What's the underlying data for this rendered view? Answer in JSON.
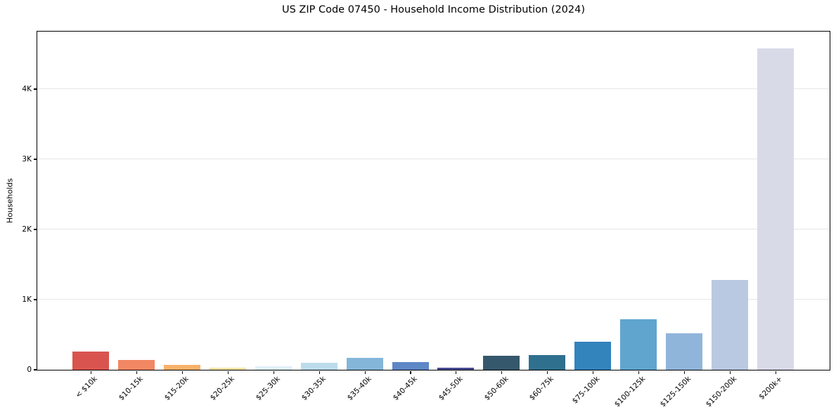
{
  "chart_data": {
    "type": "bar",
    "title": "US ZIP Code 07450 - Household Income Distribution (2024)",
    "xlabel": "",
    "ylabel": "Households",
    "categories": [
      "< $10k",
      "$10-15k",
      "$15-20k",
      "$20-25k",
      "$25-30k",
      "$30-35k",
      "$35-40k",
      "$40-45k",
      "$45-50k",
      "$50-60k",
      "$60-75k",
      "$75-100k",
      "$100-125k",
      "$125-150k",
      "$150-200k",
      "$200k+"
    ],
    "values": [
      260,
      140,
      70,
      30,
      50,
      95,
      165,
      110,
      30,
      195,
      210,
      400,
      720,
      520,
      1280,
      4580
    ],
    "bar_colors": [
      "#d9544e",
      "#f28763",
      "#f9b269",
      "#f1e3a3",
      "#e0f0f8",
      "#bcdcec",
      "#84b6da",
      "#5d87c6",
      "#474b92",
      "#35586c",
      "#2f708f",
      "#3383bd",
      "#5fa5ce",
      "#90b5da",
      "#b9c9e2",
      "#d8dae8"
    ],
    "ylim": [
      0,
      4820
    ],
    "yticks": [
      {
        "value": 0,
        "label": "0"
      },
      {
        "value": 1000,
        "label": "1K"
      },
      {
        "value": 2000,
        "label": "2K"
      },
      {
        "value": 3000,
        "label": "3K"
      },
      {
        "value": 4000,
        "label": "4K"
      }
    ],
    "grid": true,
    "legend": "none",
    "background_color": "#ffffff",
    "axis_color": "#000000",
    "grid_color": "#e6e6e6",
    "text_color": "#000000"
  }
}
